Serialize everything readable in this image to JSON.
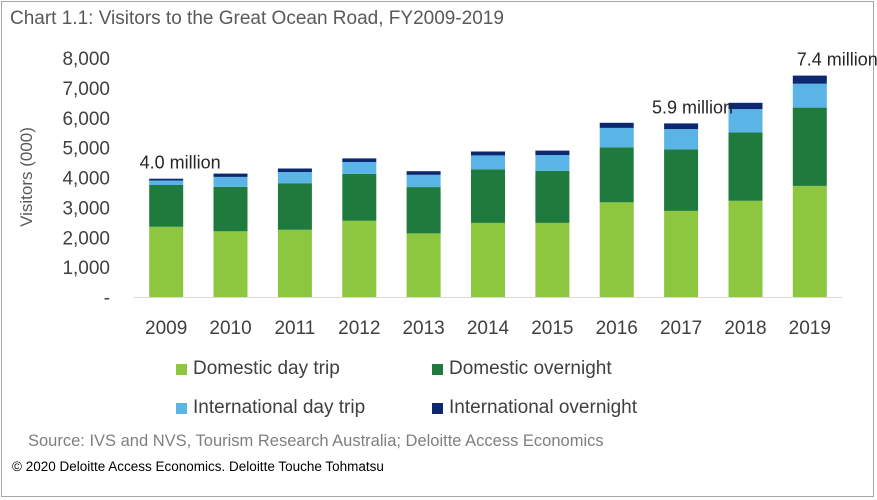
{
  "chart_data": {
    "type": "bar",
    "stacked": true,
    "title": "Chart 1.1: Visitors to the Great Ocean Road, FY2009-2019",
    "ylabel": "Visitors (000)",
    "xlabel": "",
    "ylim": [
      0,
      8000
    ],
    "yticks": [
      "-",
      "1,000",
      "2,000",
      "3,000",
      "4,000",
      "5,000",
      "6,000",
      "7,000",
      "8,000"
    ],
    "categories": [
      "2009",
      "2010",
      "2011",
      "2012",
      "2013",
      "2014",
      "2015",
      "2016",
      "2017",
      "2018",
      "2019"
    ],
    "series": [
      {
        "name": "Domestic day trip",
        "color": "#8dc63f",
        "values": [
          2350,
          2200,
          2250,
          2550,
          2130,
          2480,
          2480,
          3170,
          2880,
          3220,
          3720
        ]
      },
      {
        "name": "Domestic overnight",
        "color": "#1f7a3d",
        "values": [
          1400,
          1490,
          1560,
          1570,
          1550,
          1790,
          1740,
          1840,
          2060,
          2290,
          2620
        ]
      },
      {
        "name": "International day trip",
        "color": "#5bb4e6",
        "values": [
          150,
          330,
          370,
          400,
          410,
          470,
          530,
          650,
          680,
          780,
          800
        ]
      },
      {
        "name": "International overnight",
        "color": "#0c2870",
        "values": [
          60,
          110,
          120,
          120,
          120,
          130,
          150,
          170,
          190,
          210,
          270
        ]
      }
    ],
    "annotations": [
      {
        "category": "2009",
        "text": "4.0 million"
      },
      {
        "category": "2017",
        "text": "5.9 million"
      },
      {
        "category": "2019",
        "text": "7.4 million"
      }
    ],
    "legend": "bottom",
    "grid": false
  },
  "source": "Source: IVS and NVS, Tourism Research Australia; Deloitte Access Economics",
  "copyright": "© 2020 Deloitte Access Economics. Deloitte Touche Tohmatsu"
}
